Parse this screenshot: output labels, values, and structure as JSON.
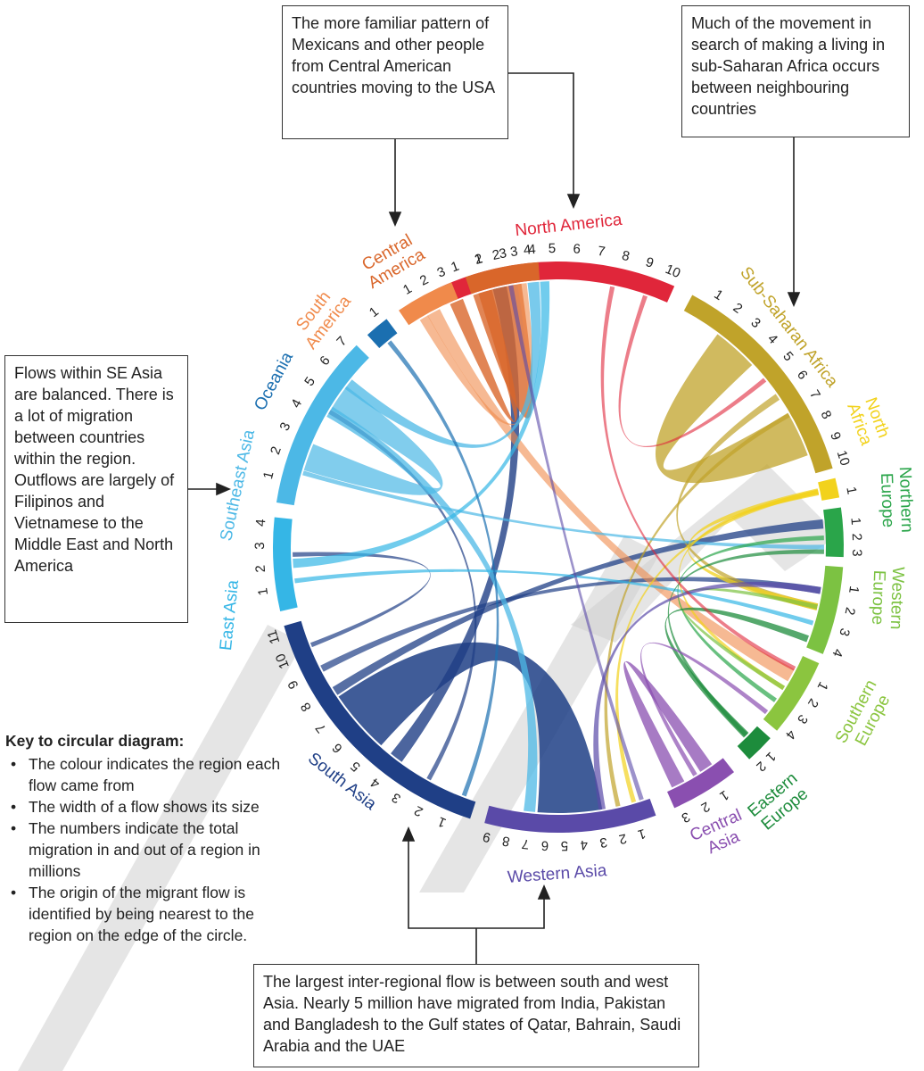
{
  "callouts": {
    "top_center": "The more familiar pattern of Mexicans and other people from Central American countries moving to the USA",
    "top_right": "Much of the movement in search of making a living in sub-Saharan Africa occurs between neighbouring countries",
    "left": "Flows within SE Asia are balanced. There is a lot of migration between countries within the region. Outflows are largely of Filipinos and Vietnamese to the Middle East and North America",
    "bottom": "The largest inter-regional flow is between south and west Asia. Nearly 5 million have migrated from India, Pakistan and Bangladesh to the Gulf states of Qatar, Bahrain, Saudi Arabia and the UAE"
  },
  "key": {
    "title": "Key to circular diagram:",
    "items": [
      "The colour indicates the region each flow came from",
      "The width of a flow shows its size",
      "The numbers indicate the total migration in and out of a region in millions",
      "The origin of the migrant flow is identified by being nearest to the region on the edge of the circle."
    ]
  },
  "regions": [
    {
      "id": "north-america",
      "label": [
        "North America"
      ],
      "color": "#e0263a",
      "total": 10
    },
    {
      "id": "sub-saharan-africa",
      "label": [
        "Sub-Saharan Africa"
      ],
      "color": "#c0a32a",
      "total": 10
    },
    {
      "id": "north-africa",
      "label": [
        "North",
        "Africa"
      ],
      "color": "#f2d21c",
      "total": 1
    },
    {
      "id": "northern-europe",
      "label": [
        "Northern",
        "Europe"
      ],
      "color": "#2aa54a",
      "total": 3
    },
    {
      "id": "western-europe",
      "label": [
        "Western",
        "Europe"
      ],
      "color": "#7cc242",
      "total": 4
    },
    {
      "id": "southern-europe",
      "label": [
        "Southern",
        "Europe"
      ],
      "color": "#8bc53f",
      "total": 4
    },
    {
      "id": "eastern-europe",
      "label": [
        "Eastern",
        "Europe"
      ],
      "color": "#1d8c3c",
      "total": 2
    },
    {
      "id": "central-asia",
      "label": [
        "Central",
        "Asia"
      ],
      "color": "#8a4fb0",
      "total": 3
    },
    {
      "id": "western-asia",
      "label": [
        "Western Asia"
      ],
      "color": "#5a4aa8",
      "total": 9
    },
    {
      "id": "south-asia",
      "label": [
        "South Asia"
      ],
      "color": "#1f3f86",
      "total": 11
    },
    {
      "id": "east-asia",
      "label": [
        "East Asia"
      ],
      "color": "#35b6e6",
      "total": 4
    },
    {
      "id": "southeast-asia",
      "label": [
        "Southeast Asia"
      ],
      "color": "#4cb8e6",
      "total": 7
    },
    {
      "id": "oceania",
      "label": [
        "Oceania"
      ],
      "color": "#1b6fb0",
      "total": 1
    },
    {
      "id": "south-america",
      "label": [
        "South",
        "America"
      ],
      "color": "#f08a4b",
      "total": 3
    },
    {
      "id": "central-america",
      "label": [
        "Central",
        "America"
      ],
      "color": "#d9662a",
      "total": 4
    }
  ]
}
